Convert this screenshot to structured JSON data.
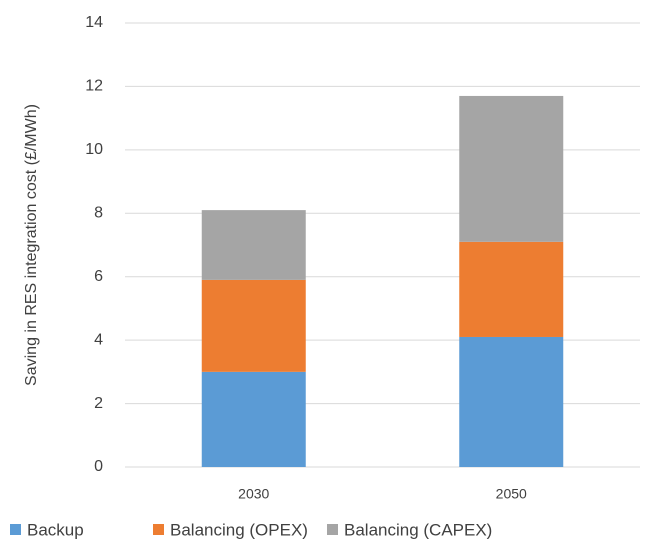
{
  "chart_data": {
    "type": "stacked_bar",
    "y_label": "Saving in RES integration cost (£/MWh)",
    "categories": [
      "2030",
      "2050"
    ],
    "series": [
      {
        "name": "Backup",
        "color": "#5b9bd5",
        "values": [
          3.0,
          4.1
        ]
      },
      {
        "name": "Balancing (OPEX)",
        "color": "#ed7d31",
        "values": [
          2.9,
          3.0
        ]
      },
      {
        "name": "Balancing (CAPEX)",
        "color": "#a5a5a5",
        "values": [
          2.2,
          4.6
        ]
      }
    ],
    "ylim": [
      0,
      14
    ],
    "yticks": [
      0,
      2,
      4,
      6,
      8,
      10,
      12,
      14
    ],
    "grid": true,
    "legend": "bottom"
  }
}
